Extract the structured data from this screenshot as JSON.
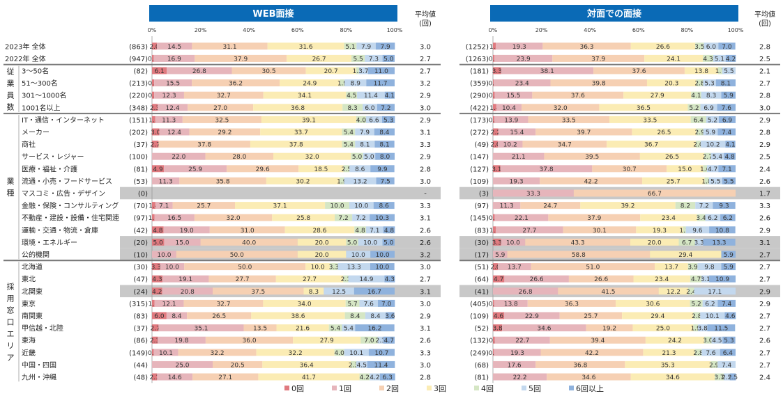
{
  "chart_data": {
    "type": "stacked-bar-100",
    "panels": [
      {
        "title": "WEB面接",
        "avg_label_1": "平均値",
        "avg_label_2": "(回)",
        "ticks": [
          "0%",
          "20%",
          "40%",
          "60%",
          "80%",
          "100%"
        ]
      },
      {
        "title": "対面での面接",
        "avg_label_1": "平均値",
        "avg_label_2": "(回)",
        "ticks": [
          "0%",
          "20%",
          "40%",
          "60%",
          "80%",
          "100%"
        ]
      }
    ],
    "legend": [
      {
        "name": "0回",
        "color": "#e07a7f"
      },
      {
        "name": "1回",
        "color": "#e6b5bb"
      },
      {
        "name": "2回",
        "color": "#f6d0b3"
      },
      {
        "name": "3回",
        "color": "#fbecb4"
      },
      {
        "name": "4回",
        "color": "#d5e6c4"
      },
      {
        "name": "5回",
        "color": "#c3d8ee"
      },
      {
        "name": "6回以上",
        "color": "#8fb2dd"
      }
    ],
    "groups": [
      {
        "label": "",
        "start": 0,
        "end": 1
      },
      {
        "label": "従業員数",
        "chars": [
          "従",
          "業",
          "員",
          "数"
        ],
        "start": 2,
        "end": 5
      },
      {
        "label": "業種",
        "chars": [
          "業",
          "種"
        ],
        "start": 6,
        "end": 17
      },
      {
        "label": "採用窓口エリア",
        "chars": [
          "採",
          "用",
          "窓",
          "口",
          "エ",
          "リ",
          "ア"
        ],
        "start": 18,
        "end": 27
      }
    ],
    "rows": [
      {
        "label": "2023年 全体",
        "web": {
          "n": "(863)",
          "avg": "3.0",
          "vals": [
            2.0,
            14.5,
            31.1,
            31.6,
            5.1,
            7.9,
            7.9
          ]
        },
        "face": {
          "n": "(1252)",
          "avg": "2.8",
          "vals": [
            1.2,
            19.3,
            36.3,
            26.6,
            3.5,
            6.0,
            7.0
          ]
        }
      },
      {
        "label": "2022年 全体",
        "web": {
          "n": "(947)",
          "avg": "2.7",
          "vals": [
            0.7,
            16.9,
            37.9,
            26.7,
            5.5,
            7.3,
            5.0
          ]
        },
        "face": {
          "n": "(1263)",
          "avg": "2.5",
          "vals": [
            0.6,
            23.9,
            37.9,
            24.1,
            4.3,
            5.1,
            4.2
          ]
        }
      },
      {
        "label": "3～50名",
        "web": {
          "n": "(82)",
          "avg": "2.7",
          "vals": [
            6.1,
            26.8,
            30.5,
            20.7,
            1.2,
            3.7,
            11.0
          ]
        },
        "face": {
          "n": "(181)",
          "avg": "2.1",
          "vals": [
            3.3,
            38.1,
            37.6,
            13.8,
            1.7,
            5.5,
            0
          ]
        }
      },
      {
        "label": "51～300名",
        "web": {
          "n": "(213)",
          "avg": "3.2",
          "vals": [
            0.9,
            15.5,
            36.2,
            24.9,
            1.9,
            8.9,
            11.7
          ]
        },
        "face": {
          "n": "(359)",
          "avg": "2.7",
          "vals": [
            0.3,
            23.4,
            39.8,
            20.3,
            2.8,
            5.3,
            8.1
          ]
        }
      },
      {
        "label": "301～1000名",
        "web": {
          "n": "(220)",
          "avg": "2.9",
          "vals": [
            0.9,
            12.3,
            32.7,
            34.1,
            4.5,
            11.4,
            4.1
          ]
        },
        "face": {
          "n": "(290)",
          "avg": "2.8",
          "vals": [
            0.7,
            15.5,
            37.6,
            27.9,
            4.1,
            8.3,
            5.9
          ]
        }
      },
      {
        "label": "1001名以上",
        "web": {
          "n": "(348)",
          "avg": "3.0",
          "vals": [
            2.3,
            12.4,
            27.0,
            36.8,
            8.3,
            6.0,
            7.2
          ]
        },
        "face": {
          "n": "(422)",
          "avg": "3.0",
          "vals": [
            1.4,
            10.4,
            32.0,
            36.5,
            5.2,
            6.9,
            7.6
          ]
        }
      },
      {
        "label": "IT・通信・インターネット",
        "web": {
          "n": "(151)",
          "avg": "2.9",
          "vals": [
            1.3,
            11.3,
            32.5,
            39.1,
            4.0,
            6.6,
            5.3
          ]
        },
        "face": {
          "n": "(173)",
          "avg": "2.9",
          "vals": [
            0.6,
            13.9,
            33.5,
            33.5,
            6.4,
            5.2,
            6.9
          ]
        }
      },
      {
        "label": "メーカー",
        "web": {
          "n": "(202)",
          "avg": "3.1",
          "vals": [
            3.0,
            12.4,
            29.2,
            33.7,
            5.4,
            7.9,
            8.4
          ]
        },
        "face": {
          "n": "(272)",
          "avg": "2.8",
          "vals": [
            2.2,
            15.4,
            39.7,
            26.5,
            2.9,
            5.9,
            7.4
          ]
        }
      },
      {
        "label": "商社",
        "web": {
          "n": "(37)",
          "avg": "3.3",
          "vals": [
            2.7,
            0,
            37.8,
            37.8,
            5.4,
            8.1,
            8.1
          ]
        },
        "face": {
          "n": "(49)",
          "avg": "2.9",
          "vals": [
            2.0,
            10.2,
            34.7,
            36.7,
            2.0,
            10.2,
            4.1
          ]
        }
      },
      {
        "label": "サービス・レジャー",
        "web": {
          "n": "(100)",
          "avg": "2.9",
          "vals": [
            0,
            22.0,
            28.0,
            32.0,
            5.0,
            5.0,
            8.0
          ]
        },
        "face": {
          "n": "(147)",
          "avg": "2.5",
          "vals": [
            0,
            21.1,
            39.5,
            26.5,
            2.7,
            5.4,
            4.8
          ]
        }
      },
      {
        "label": "医療・福祉・介護",
        "web": {
          "n": "(81)",
          "avg": "2.8",
          "vals": [
            4.9,
            25.9,
            29.6,
            18.5,
            2.5,
            8.6,
            9.9
          ]
        },
        "face": {
          "n": "(127)",
          "avg": "2.4",
          "vals": [
            3.1,
            37.8,
            30.7,
            15.0,
            1.6,
            4.7,
            7.1
          ]
        }
      },
      {
        "label": "流通・小売・フードサービス",
        "web": {
          "n": "(53)",
          "avg": "3.0",
          "vals": [
            0,
            11.3,
            35.8,
            30.2,
            1.9,
            13.2,
            7.5
          ]
        },
        "face": {
          "n": "(109)",
          "avg": "2.6",
          "vals": [
            0,
            19.3,
            42.2,
            25.7,
            1.8,
            5.5,
            5.5
          ]
        }
      },
      {
        "label": "マスコミ・広告・デザイン",
        "gray": true,
        "web": {
          "n": "(0)",
          "avg": "-",
          "vals": [
            0,
            0,
            0,
            0,
            0,
            0,
            0
          ]
        },
        "face": {
          "n": "(3)",
          "avg": "1.7",
          "vals": [
            0,
            33.3,
            66.7,
            0,
            0,
            0,
            0
          ]
        }
      },
      {
        "label": "金融・保険・コンサルティング",
        "web": {
          "n": "(70)",
          "avg": "3.3",
          "vals": [
            1.4,
            7.1,
            25.7,
            37.1,
            10.0,
            10.0,
            8.6
          ]
        },
        "face": {
          "n": "(97)",
          "avg": "3.3",
          "vals": [
            0,
            11.3,
            24.7,
            39.2,
            8.2,
            7.2,
            9.3
          ]
        }
      },
      {
        "label": "不動産・建設・設備・住宅関連",
        "web": {
          "n": "(97)",
          "avg": "3.1",
          "vals": [
            1.0,
            16.5,
            32.0,
            25.8,
            7.2,
            7.2,
            10.3
          ]
        },
        "face": {
          "n": "(145)",
          "avg": "2.6",
          "vals": [
            0.7,
            22.1,
            37.9,
            23.4,
            3.4,
            6.2,
            6.2
          ]
        }
      },
      {
        "label": "運輸・交通・物流・倉庫",
        "web": {
          "n": "(42)",
          "avg": "2.6",
          "vals": [
            4.8,
            19.0,
            31.0,
            28.6,
            4.8,
            7.1,
            4.8
          ]
        },
        "face": {
          "n": "(83)",
          "avg": "2.9",
          "vals": [
            1.2,
            27.7,
            30.1,
            19.3,
            1.2,
            9.6,
            10.8
          ]
        }
      },
      {
        "label": "環境・エネルギー",
        "gray": true,
        "web": {
          "n": "(20)",
          "avg": "2.6",
          "vals": [
            5.0,
            15.0,
            40.0,
            20.0,
            5.0,
            10.0,
            5.0
          ]
        },
        "face": {
          "n": "(30)",
          "avg": "3.1",
          "vals": [
            3.3,
            10.0,
            43.3,
            20.0,
            6.7,
            3.3,
            13.3
          ]
        }
      },
      {
        "label": "公的機関",
        "gray": true,
        "web": {
          "n": "(10)",
          "avg": "3.2",
          "vals": [
            0,
            10.0,
            50.0,
            20.0,
            0,
            10.0,
            10.0
          ]
        },
        "face": {
          "n": "(17)",
          "avg": "2.7",
          "vals": [
            0,
            5.9,
            58.8,
            29.4,
            0,
            0,
            5.9
          ]
        }
      },
      {
        "label": "北海道",
        "web": {
          "n": "(30)",
          "avg": "3.0",
          "vals": [
            3.3,
            10.0,
            50.0,
            10.0,
            3.3,
            13.3,
            10.0
          ]
        },
        "face": {
          "n": "(51)",
          "avg": "2.7",
          "vals": [
            2.0,
            13.7,
            51.0,
            13.7,
            3.9,
            9.8,
            5.9
          ]
        }
      },
      {
        "label": "東北",
        "web": {
          "n": "(47)",
          "avg": "2.7",
          "vals": [
            4.3,
            19.1,
            27.7,
            27.7,
            2.1,
            14.9,
            4.3
          ]
        },
        "face": {
          "n": "(64)",
          "avg": "2.7",
          "vals": [
            4.7,
            26.6,
            26.6,
            23.4,
            4.7,
            3.1,
            10.9
          ]
        }
      },
      {
        "label": "北関東",
        "gray": true,
        "web": {
          "n": "(24)",
          "avg": "3.1",
          "vals": [
            4.2,
            20.8,
            37.5,
            8.3,
            0,
            12.5,
            16.7
          ]
        },
        "face": {
          "n": "(41)",
          "avg": "2.9",
          "vals": [
            0,
            26.8,
            41.5,
            12.2,
            2.4,
            17.1,
            0
          ]
        }
      },
      {
        "label": "東京",
        "web": {
          "n": "(315)",
          "avg": "3.0",
          "vals": [
            1.0,
            12.1,
            32.7,
            34.0,
            5.7,
            7.6,
            7.0
          ]
        },
        "face": {
          "n": "(405)",
          "avg": "2.9",
          "vals": [
            0.5,
            13.8,
            36.3,
            30.6,
            5.2,
            6.2,
            7.4
          ]
        }
      },
      {
        "label": "南関東",
        "web": {
          "n": "(83)",
          "avg": "2.9",
          "vals": [
            6.0,
            8.4,
            26.5,
            38.6,
            8.4,
            8.4,
            3.6
          ]
        },
        "face": {
          "n": "(109)",
          "avg": "2.7",
          "vals": [
            4.6,
            22.9,
            25.7,
            29.4,
            2.8,
            10.1,
            4.6
          ]
        }
      },
      {
        "label": "甲信越・北陸",
        "web": {
          "n": "(37)",
          "avg": "3.1",
          "vals": [
            2.7,
            35.1,
            13.5,
            21.6,
            5.4,
            5.4,
            16.2
          ]
        },
        "face": {
          "n": "(52)",
          "avg": "2.7",
          "vals": [
            3.8,
            34.6,
            19.2,
            25.0,
            1.9,
            3.8,
            11.5
          ]
        }
      },
      {
        "label": "東海",
        "web": {
          "n": "(86)",
          "avg": "2.6",
          "vals": [
            2.3,
            19.8,
            36.0,
            27.9,
            7.0,
            2.3,
            4.7
          ]
        },
        "face": {
          "n": "(132)",
          "avg": "2.6",
          "vals": [
            0.8,
            22.7,
            39.4,
            24.2,
            3.0,
            4.5,
            5.3
          ]
        }
      },
      {
        "label": "近畿",
        "web": {
          "n": "(149)",
          "avg": "3.3",
          "vals": [
            0.7,
            10.1,
            32.2,
            32.2,
            4.0,
            10.1,
            10.7
          ]
        },
        "face": {
          "n": "(249)",
          "avg": "2.7",
          "vals": [
            0.4,
            19.3,
            42.2,
            21.3,
            2.8,
            7.6,
            6.4
          ]
        }
      },
      {
        "label": "中国・四国",
        "web": {
          "n": "(44)",
          "avg": "3.0",
          "vals": [
            0,
            25.0,
            20.5,
            36.4,
            2.3,
            4.5,
            11.4
          ]
        },
        "face": {
          "n": "(68)",
          "avg": "2.7",
          "vals": [
            0,
            17.6,
            36.8,
            35.3,
            2.9,
            7.4,
            0
          ]
        }
      },
      {
        "label": "九州・沖縄",
        "web": {
          "n": "(48)",
          "avg": "2.8",
          "vals": [
            2.1,
            14.6,
            27.1,
            41.7,
            4.2,
            4.2,
            6.3
          ]
        },
        "face": {
          "n": "(81)",
          "avg": "2.4",
          "vals": [
            0,
            22.2,
            34.6,
            34.6,
            3.7,
            2.5,
            2.5
          ]
        }
      }
    ]
  }
}
